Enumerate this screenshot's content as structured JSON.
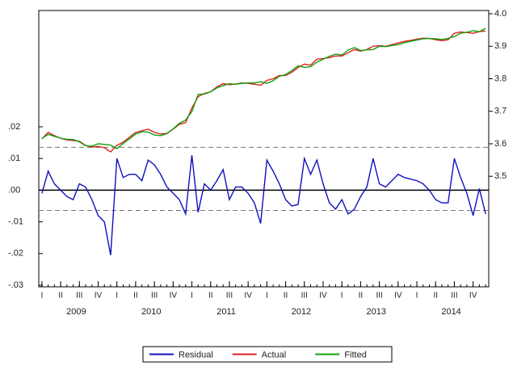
{
  "chart_data": {
    "type": "line",
    "categories": [
      "I",
      null,
      null,
      "II",
      null,
      null,
      "III",
      null,
      null,
      "IV",
      null,
      null,
      "I",
      null,
      null,
      "II",
      null,
      null,
      "III",
      null,
      null,
      "IV",
      null,
      null,
      "I",
      null,
      null,
      "II",
      null,
      null,
      "III",
      null,
      null,
      "IV",
      null,
      null,
      "I",
      null,
      null,
      "II",
      null,
      null,
      "III",
      null,
      null,
      "IV",
      null,
      null,
      "I",
      null,
      null,
      "II",
      null,
      null,
      "III",
      null,
      null,
      "IV",
      null,
      null,
      "I",
      null,
      null,
      "II",
      null,
      null,
      "III",
      null,
      null,
      "IV",
      null,
      null
    ],
    "year_labels": [
      "2009",
      "2010",
      "2011",
      "2012",
      "2013",
      "2014"
    ],
    "ylim": [
      -0.0305,
      0.0567
    ],
    "yticks": [
      {
        "value": -0.03,
        "label": "-.03"
      },
      {
        "value": -0.02,
        "label": "-.02"
      },
      {
        "value": -0.01,
        "label": "-.01"
      },
      {
        "value": 0,
        "label": ".00"
      },
      {
        "value": 0.01,
        "label": ".01"
      },
      {
        "value": 0.02,
        "label": ".02"
      }
    ],
    "y2lim": [
      3.16,
      4.01
    ],
    "y2ticks": [
      3.5,
      3.6,
      3.7,
      3.8,
      3.9,
      {
        "value": 4,
        "label": "4.0"
      }
    ],
    "reference_lines": [
      0.0135,
      -0.0064
    ],
    "zero_line": 0,
    "legend": "bottom",
    "series": [
      {
        "name": "Residual",
        "color": "#1010c0",
        "axis": "y",
        "values": [
          -0.001,
          0.006,
          0.002,
          0,
          -0.002,
          -0.003,
          0.002,
          0.001,
          -0.003,
          -0.008,
          -0.01,
          -0.0205,
          0.01,
          0.004,
          0.005,
          0.005,
          0.003,
          0.0095,
          0.008,
          0.005,
          0.001,
          -0.001,
          -0.003,
          -0.0075,
          0.011,
          -0.007,
          0.002,
          0,
          0.003,
          0.0065,
          -0.003,
          0.001,
          0.001,
          -0.001,
          -0.004,
          -0.0105,
          0.0095,
          0.006,
          0.002,
          -0.003,
          -0.005,
          -0.0045,
          0.01,
          0.005,
          0.0095,
          0.002,
          -0.004,
          -0.006,
          -0.003,
          -0.0075,
          -0.006,
          -0.002,
          0.001,
          0.01,
          0.002,
          0.001,
          0.003,
          0.005,
          0.004,
          0.0035,
          0.003,
          0.002,
          0,
          -0.003,
          -0.004,
          -0.004,
          0.01,
          0.004,
          -0.001,
          -0.008,
          0.0005,
          -0.0075
        ]
      },
      {
        "name": "Actual",
        "color": "#e02020",
        "axis": "y2",
        "values": [
          3.615,
          3.635,
          3.625,
          3.617,
          3.612,
          3.61,
          3.608,
          3.595,
          3.59,
          3.592,
          3.588,
          3.575,
          3.595,
          3.605,
          3.62,
          3.635,
          3.64,
          3.645,
          3.635,
          3.63,
          3.632,
          3.645,
          3.66,
          3.665,
          3.71,
          3.745,
          3.755,
          3.76,
          3.775,
          3.785,
          3.782,
          3.784,
          3.787,
          3.786,
          3.783,
          3.78,
          3.795,
          3.8,
          3.81,
          3.81,
          3.82,
          3.835,
          3.845,
          3.842,
          3.86,
          3.862,
          3.865,
          3.87,
          3.87,
          3.88,
          3.89,
          3.885,
          3.89,
          3.9,
          3.902,
          3.9,
          3.905,
          3.91,
          3.915,
          3.918,
          3.922,
          3.925,
          3.924,
          3.92,
          3.917,
          3.92,
          3.94,
          3.944,
          3.942,
          3.94,
          3.945,
          3.947
        ]
      },
      {
        "name": "Fitted",
        "color": "#10a010",
        "axis": "y2",
        "values": [
          3.616,
          3.629,
          3.623,
          3.617,
          3.614,
          3.613,
          3.606,
          3.594,
          3.593,
          3.6,
          3.598,
          3.596,
          3.585,
          3.601,
          3.615,
          3.63,
          3.637,
          3.636,
          3.627,
          3.625,
          3.631,
          3.646,
          3.663,
          3.673,
          3.699,
          3.752,
          3.753,
          3.76,
          3.772,
          3.779,
          3.785,
          3.783,
          3.786,
          3.787,
          3.787,
          3.791,
          3.786,
          3.794,
          3.808,
          3.813,
          3.825,
          3.84,
          3.835,
          3.837,
          3.851,
          3.86,
          3.869,
          3.876,
          3.873,
          3.888,
          3.896,
          3.887,
          3.889,
          3.89,
          3.9,
          3.899,
          3.902,
          3.905,
          3.911,
          3.915,
          3.919,
          3.923,
          3.924,
          3.923,
          3.921,
          3.924,
          3.93,
          3.94,
          3.943,
          3.948,
          3.945,
          3.955
        ]
      }
    ]
  }
}
